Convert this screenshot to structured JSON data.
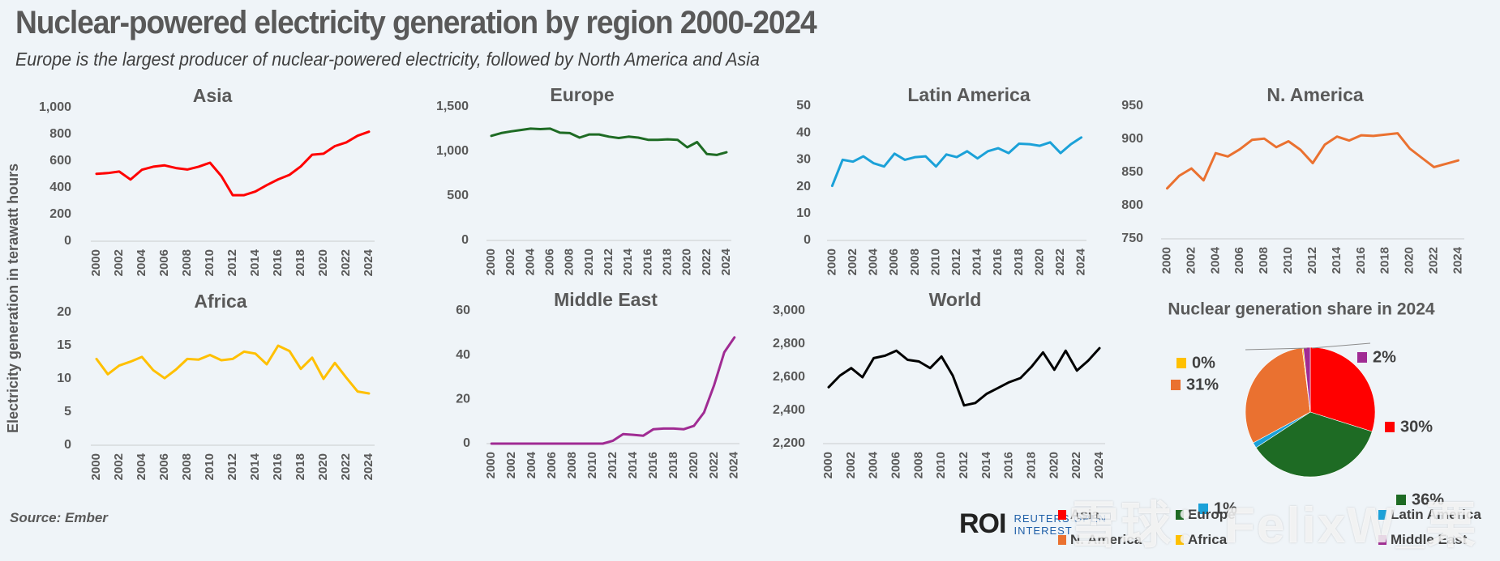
{
  "header": {
    "title": "Nuclear-powered electricity generation by region 2000-2024",
    "subtitle": "Europe is the largest producer of nuclear-powered electricity, followed by North America and Asia",
    "y_axis_label": "Electricity generation in terawatt hours",
    "source": "Source:  Ember"
  },
  "branding": {
    "logo": "ROI",
    "line1": "REUTERS OPEN",
    "line2": "INTEREST",
    "watermark": "雪球：FelixW_栗"
  },
  "legend": [
    {
      "label": "Asia",
      "color": "#ff0000"
    },
    {
      "label": "Europe",
      "color": "#1e6b24"
    },
    {
      "label": "Latin America",
      "color": "#1ba1d8"
    },
    {
      "label": "N. America",
      "color": "#ea7130"
    },
    {
      "label": "Africa",
      "color": "#ffc000"
    },
    {
      "label": "Middle East",
      "color": "#a02b93"
    }
  ],
  "chart_data": [
    {
      "type": "line",
      "title": "Asia",
      "color": "#ff0000",
      "ylim": [
        0,
        1000
      ],
      "yticks": [
        0,
        200,
        400,
        600,
        800,
        1000
      ],
      "ytick_labels": [
        "0",
        "200",
        "400",
        "600",
        "800",
        "1,000"
      ],
      "x": [
        2000,
        2001,
        2002,
        2003,
        2004,
        2005,
        2006,
        2007,
        2008,
        2009,
        2010,
        2011,
        2012,
        2013,
        2014,
        2015,
        2016,
        2017,
        2018,
        2019,
        2020,
        2021,
        2022,
        2023,
        2024
      ],
      "xtick_labels": [
        "2000",
        "2002",
        "2004",
        "2006",
        "2008",
        "2010",
        "2012",
        "2014",
        "2016",
        "2018",
        "2020",
        "2022",
        "2024"
      ],
      "values": [
        505,
        510,
        522,
        462,
        535,
        558,
        568,
        548,
        537,
        558,
        588,
        488,
        345,
        345,
        372,
        420,
        463,
        497,
        560,
        648,
        655,
        712,
        740,
        790,
        820
      ]
    },
    {
      "type": "line",
      "title": "Europe",
      "color": "#1e6b24",
      "ylim": [
        0,
        1500
      ],
      "yticks": [
        0,
        500,
        1000,
        1500
      ],
      "ytick_labels": [
        "0",
        "500",
        "1,000",
        "1,500"
      ],
      "x": [
        2000,
        2001,
        2002,
        2003,
        2004,
        2005,
        2006,
        2007,
        2008,
        2009,
        2010,
        2011,
        2012,
        2013,
        2014,
        2015,
        2016,
        2017,
        2018,
        2019,
        2020,
        2021,
        2022,
        2023,
        2024
      ],
      "xtick_labels": [
        "2000",
        "2002",
        "2004",
        "2006",
        "2008",
        "2010",
        "2012",
        "2014",
        "2016",
        "2018",
        "2020",
        "2022",
        "2024"
      ],
      "values": [
        1175,
        1205,
        1225,
        1240,
        1255,
        1250,
        1255,
        1210,
        1205,
        1155,
        1190,
        1190,
        1165,
        1150,
        1165,
        1155,
        1130,
        1130,
        1135,
        1130,
        1045,
        1105,
        970,
        960,
        990
      ]
    },
    {
      "type": "line",
      "title": "Latin America",
      "color": "#1ba1d8",
      "ylim": [
        0,
        50
      ],
      "yticks": [
        0,
        10,
        20,
        30,
        40,
        50
      ],
      "ytick_labels": [
        "0",
        "10",
        "20",
        "30",
        "40",
        "50"
      ],
      "x": [
        2000,
        2001,
        2002,
        2003,
        2004,
        2005,
        2006,
        2007,
        2008,
        2009,
        2010,
        2011,
        2012,
        2013,
        2014,
        2015,
        2016,
        2017,
        2018,
        2019,
        2020,
        2021,
        2022,
        2023,
        2024
      ],
      "xtick_labels": [
        "2000",
        "2002",
        "2004",
        "2006",
        "2008",
        "2010",
        "2012",
        "2014",
        "2016",
        "2018",
        "2020",
        "2022",
        "2024"
      ],
      "values": [
        20.3,
        30,
        29.3,
        31.3,
        28.7,
        27.5,
        32.3,
        30,
        31,
        31.3,
        27.5,
        32,
        31,
        33.2,
        30.5,
        33.2,
        34.3,
        32.5,
        36,
        35.8,
        35.2,
        36.5,
        32.5,
        35.8,
        38.3
      ]
    },
    {
      "type": "line",
      "title": "N. America",
      "color": "#ea7130",
      "ylim": [
        750,
        950
      ],
      "yticks": [
        750,
        800,
        850,
        900,
        950
      ],
      "ytick_labels": [
        "750",
        "800",
        "850",
        "900",
        "950"
      ],
      "x": [
        2000,
        2001,
        2002,
        2003,
        2004,
        2005,
        2006,
        2007,
        2008,
        2009,
        2010,
        2011,
        2012,
        2013,
        2014,
        2015,
        2016,
        2017,
        2018,
        2019,
        2020,
        2021,
        2022,
        2023,
        2024
      ],
      "xtick_labels": [
        "2000",
        "2002",
        "2004",
        "2006",
        "2008",
        "2010",
        "2012",
        "2014",
        "2016",
        "2018",
        "2020",
        "2022",
        "2024"
      ],
      "values": [
        826,
        845,
        856,
        838,
        879,
        874,
        885,
        899,
        901,
        888,
        897,
        884,
        864,
        892,
        904,
        898,
        906,
        905,
        907,
        909,
        886,
        872,
        858,
        863,
        868
      ]
    },
    {
      "type": "line",
      "title": "Africa",
      "color": "#ffc000",
      "ylim": [
        0,
        20
      ],
      "yticks": [
        0,
        5,
        10,
        15,
        20
      ],
      "ytick_labels": [
        "0",
        "5",
        "10",
        "15",
        "20"
      ],
      "x": [
        2000,
        2001,
        2002,
        2003,
        2004,
        2005,
        2006,
        2007,
        2008,
        2009,
        2010,
        2011,
        2012,
        2013,
        2014,
        2015,
        2016,
        2017,
        2018,
        2019,
        2020,
        2021,
        2022,
        2023,
        2024
      ],
      "xtick_labels": [
        "2000",
        "2002",
        "2004",
        "2006",
        "2008",
        "2010",
        "2012",
        "2014",
        "2016",
        "2018",
        "2020",
        "2022",
        "2024"
      ],
      "values": [
        13.0,
        10.7,
        12.0,
        12.6,
        13.3,
        11.3,
        10.1,
        11.4,
        13.0,
        12.9,
        13.6,
        12.8,
        13.0,
        14.1,
        13.8,
        12.2,
        15.0,
        14.2,
        11.5,
        13.2,
        10.0,
        12.4,
        10.2,
        8.1,
        7.8
      ]
    },
    {
      "type": "line",
      "title": "Middle East",
      "color": "#a02b93",
      "ylim": [
        0,
        60
      ],
      "yticks": [
        0,
        20,
        40,
        60
      ],
      "ytick_labels": [
        "0",
        "20",
        "40",
        "60"
      ],
      "x": [
        2000,
        2001,
        2002,
        2003,
        2004,
        2005,
        2006,
        2007,
        2008,
        2009,
        2010,
        2011,
        2012,
        2013,
        2014,
        2015,
        2016,
        2017,
        2018,
        2019,
        2020,
        2021,
        2022,
        2023,
        2024
      ],
      "xtick_labels": [
        "2000",
        "2002",
        "2004",
        "2006",
        "2008",
        "2010",
        "2012",
        "2014",
        "2016",
        "2018",
        "2020",
        "2022",
        "2024"
      ],
      "values": [
        0,
        0,
        0,
        0,
        0,
        0,
        0,
        0,
        0,
        0,
        0,
        0,
        1.3,
        4.3,
        4.0,
        3.6,
        6.5,
        6.8,
        6.8,
        6.5,
        8.0,
        14.1,
        26.5,
        41.3,
        48
      ]
    },
    {
      "type": "line",
      "title": "World",
      "color": "#000000",
      "ylim": [
        2200,
        3000
      ],
      "yticks": [
        2200,
        2400,
        2600,
        2800,
        3000
      ],
      "ytick_labels": [
        "2,200",
        "2,400",
        "2,600",
        "2,800",
        "3,000"
      ],
      "x": [
        2000,
        2001,
        2002,
        2003,
        2004,
        2005,
        2006,
        2007,
        2008,
        2009,
        2010,
        2011,
        2012,
        2013,
        2014,
        2015,
        2016,
        2017,
        2018,
        2019,
        2020,
        2021,
        2022,
        2023,
        2024
      ],
      "xtick_labels": [
        "2000",
        "2002",
        "2004",
        "2006",
        "2008",
        "2010",
        "2012",
        "2014",
        "2016",
        "2018",
        "2020",
        "2022",
        "2024"
      ],
      "values": [
        2540,
        2610,
        2655,
        2600,
        2715,
        2730,
        2760,
        2705,
        2695,
        2655,
        2725,
        2610,
        2430,
        2445,
        2500,
        2535,
        2570,
        2595,
        2665,
        2750,
        2645,
        2760,
        2640,
        2700,
        2775
      ]
    },
    {
      "type": "pie",
      "title": "Nuclear generation share in 2024",
      "slices": [
        {
          "label": "Asia",
          "value": 30,
          "display": "30%",
          "color": "#ff0000"
        },
        {
          "label": "Europe",
          "value": 36,
          "display": "36%",
          "color": "#1e6b24"
        },
        {
          "label": "Latin America",
          "value": 1.4,
          "display": "1%",
          "color": "#1ba1d8"
        },
        {
          "label": "N. America",
          "value": 31,
          "display": "31%",
          "color": "#ea7130"
        },
        {
          "label": "Africa",
          "value": 0.3,
          "display": "0%",
          "color": "#ffc000"
        },
        {
          "label": "Middle East",
          "value": 1.7,
          "display": "2%",
          "color": "#a02b93"
        }
      ]
    }
  ]
}
